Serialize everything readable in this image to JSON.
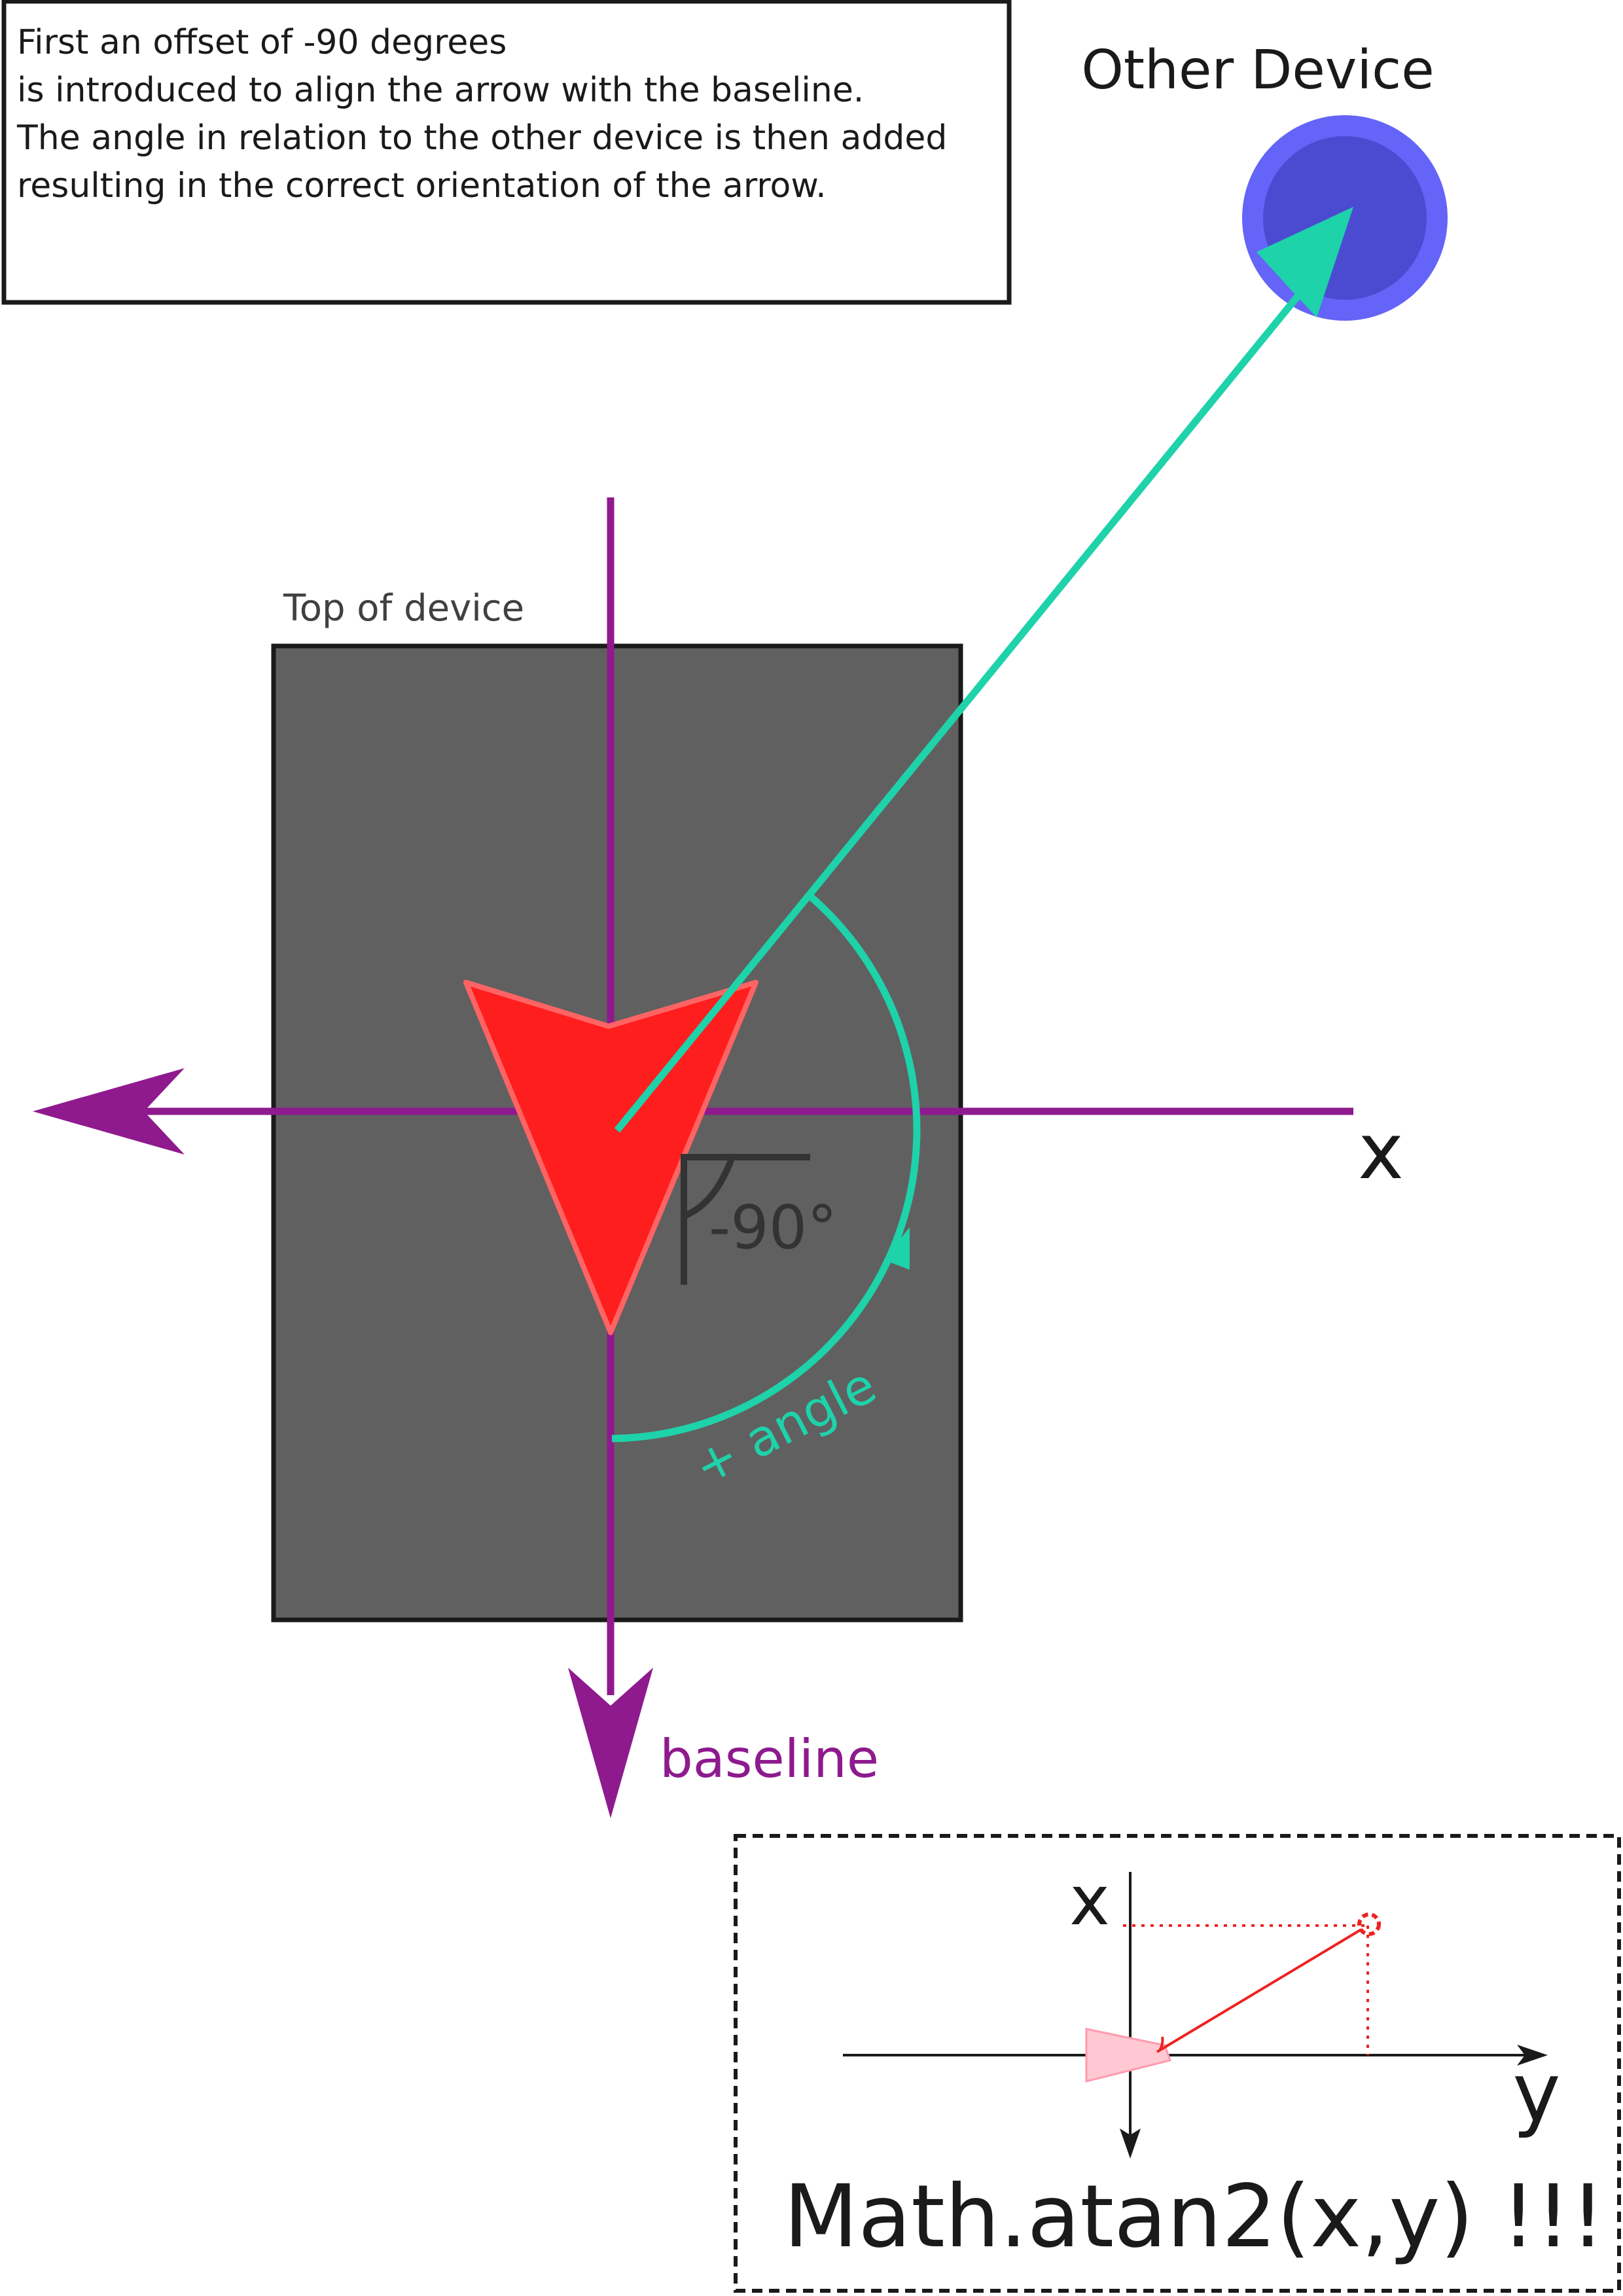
{
  "explanation": {
    "lines": [
      "First an offset of -90 degrees",
      "is introduced to align the arrow with the baseline.",
      "The angle in relation to the other device is then added",
      "resulting in the correct orientation of the arrow."
    ]
  },
  "other_device_label": "Other Device",
  "device_top_label": "Top of device",
  "axis_x_label": "x",
  "baseline_label": "baseline",
  "offset_label": "-90°",
  "angle_label": "+ angle",
  "inset": {
    "x_label": "x",
    "y_label": "y",
    "formula": "Math.atan2(x,y) !!!"
  },
  "colors": {
    "axis": "#8e1a8e",
    "pointer": "#ff1e1e",
    "pointer_stroke": "#ff6464",
    "teal": "#1ed2aa",
    "device_body": "#606060",
    "device_outline": "#1a1a1a",
    "other_device_outer": "#6464f8",
    "other_device_inner": "#4b4bd2",
    "text_dark": "#1a1a1a",
    "inset_red": "#ee2222",
    "inset_wedge": "#ffc8d2"
  }
}
